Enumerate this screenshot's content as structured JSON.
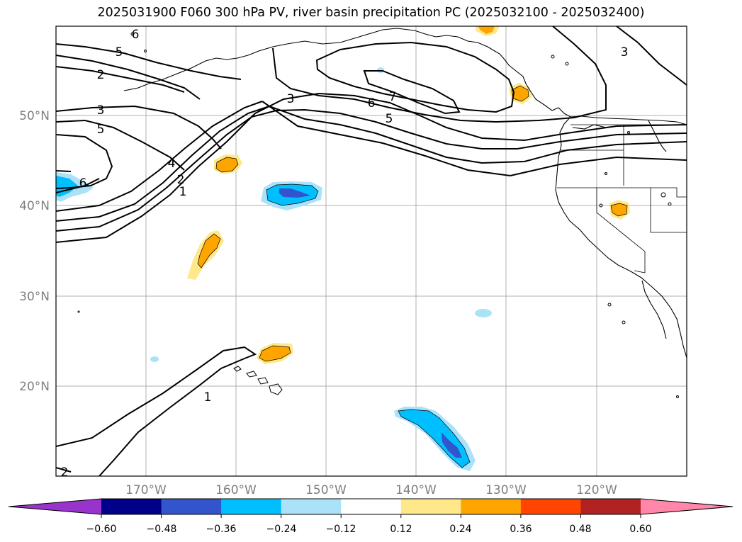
{
  "title": "2025031900 F060 300 hPa PV, river basin precipitation PC (2025032100 - 2025032400)",
  "lat_labels": [
    "50°N",
    "40°N",
    "30°N",
    "20°N"
  ],
  "lon_labels": [
    "170°W",
    "160°W",
    "150°W",
    "140°W",
    "130°W",
    "120°W"
  ],
  "contour_labels": [
    "5",
    "2",
    "3",
    "5",
    "4",
    "2",
    "1",
    "6",
    "3",
    "6",
    "5",
    "7",
    "3",
    "1",
    "2",
    "6"
  ],
  "colorbar": {
    "colors": [
      "#9933cc",
      "#00008b",
      "#3355cc",
      "#00bfff",
      "#aae2fa",
      "#ffffff",
      "#ffe88a",
      "#ffa500",
      "#ff4500",
      "#b22222",
      "#ff88aa"
    ],
    "tick_labels": [
      "−0.60",
      "−0.48",
      "−0.36",
      "−0.24",
      "−0.12",
      "0.12",
      "0.24",
      "0.36",
      "0.48",
      "0.60"
    ]
  }
}
